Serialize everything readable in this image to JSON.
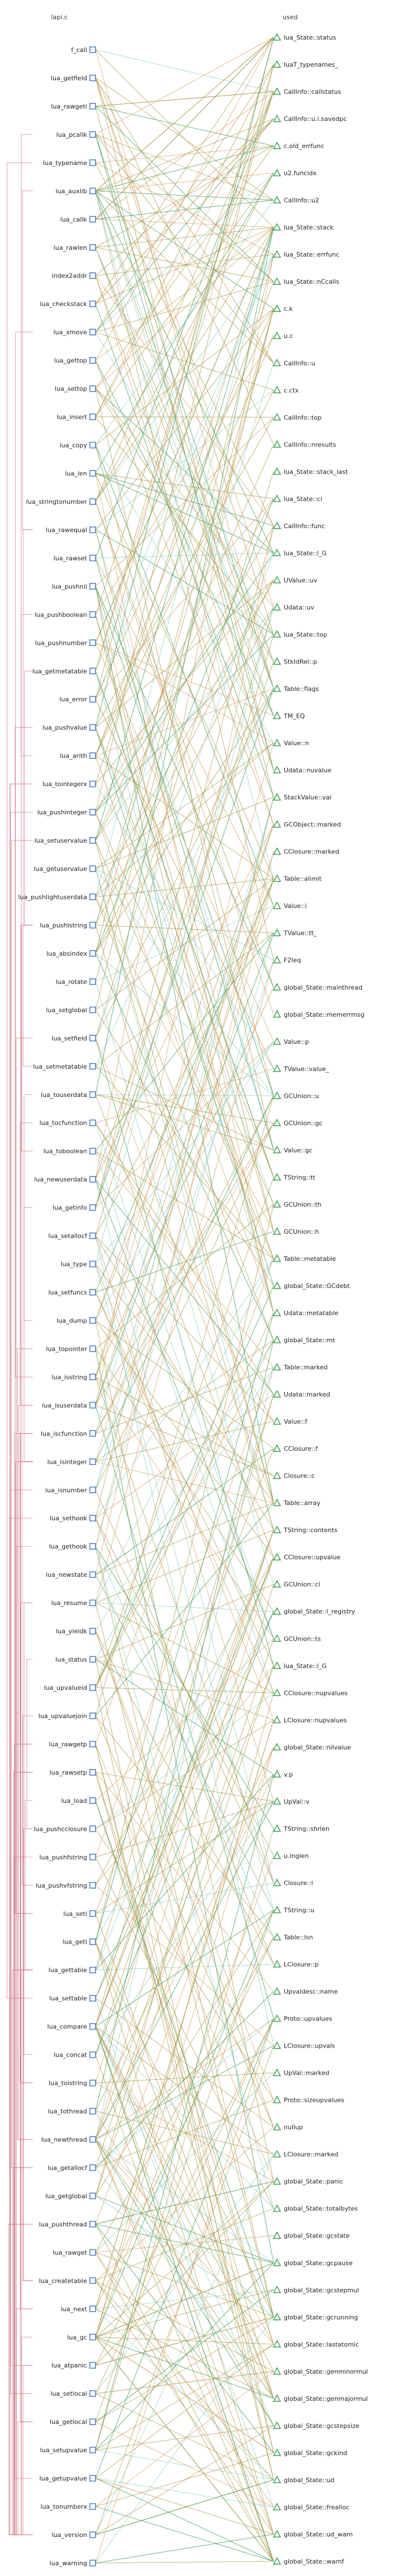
{
  "headers": {
    "left": "lapi.c",
    "right": "used"
  },
  "colors": {
    "edge_lightblue": "#8ecfc7",
    "edge_green": "#3e9a55",
    "edge_tan": "#b09a4e",
    "edge_orange": "#d7a16a",
    "call_arc": "#c45b72",
    "func_marker": "#4a78c9",
    "field_marker": "#3c9f58"
  },
  "functions": [
    "f_call",
    "lua_getfield",
    "lua_rawgeti",
    "lua_pcallk",
    "lua_typename",
    "lua_auxlib",
    "lua_callk",
    "lua_rawlen",
    "index2addr",
    "lua_checkstack",
    "lua_xmove",
    "lua_gettop",
    "lua_settop",
    "lua_insert",
    "lua_copy",
    "lua_len",
    "lua_stringtonumber",
    "lua_rawequal",
    "lua_rawset",
    "lua_pushnil",
    "lua_pushboolean",
    "lua_pushnumber",
    "lua_getmetatable",
    "lua_error",
    "lua_pushvalue",
    "lua_arith",
    "lua_tointegerx",
    "lua_pushinteger",
    "lua_setuservalue",
    "lua_getuservalue",
    "lua_pushlightuserdata",
    "lua_pushlstring",
    "lua_absindex",
    "lua_rotate",
    "lua_setglobal",
    "lua_setfield",
    "lua_setmetatable",
    "lua_touserdata",
    "lua_tocfunction",
    "lua_toboolean",
    "lua_newuserdata",
    "lua_getinfo",
    "lua_setallocf",
    "lua_type",
    "lua_setfuncs",
    "lua_dump",
    "lua_topointer",
    "lua_isstring",
    "lua_isuserdata",
    "lua_iscfunction",
    "lua_isinteger",
    "lua_isnumber",
    "lua_sethook",
    "lua_gethook",
    "lua_newstate",
    "lua_resume",
    "lua_yieldk",
    "lua_status",
    "lua_upvalueid",
    "lua_upvaluejoin",
    "lua_rawgetp",
    "lua_rawsetp",
    "lua_load",
    "lua_pushcclosure",
    "lua_pushfstring",
    "lua_pushvfstring",
    "lua_seti",
    "lua_geti",
    "lua_gettable",
    "lua_settable",
    "lua_compare",
    "lua_concat",
    "lua_tolstring",
    "lua_tothread",
    "lua_newthread",
    "lua_getallocf",
    "lua_getglobal",
    "lua_pushthread",
    "lua_rawget",
    "lua_createtable",
    "lua_next",
    "lua_gc",
    "lua_atpanic",
    "lua_setlocal",
    "lua_getlocal",
    "lua_setupvalue",
    "lua_getupvalue",
    "lua_tonumberx",
    "lua_version",
    "lua_warning"
  ],
  "fields": [
    "lua_State::status",
    "luaT_typenames_",
    "CallInfo::callstatus",
    "CallInfo::u.l.savedpc",
    "c.old_errfunc",
    "u2.funcidx",
    "CallInfo::u2",
    "lua_State::stack",
    "lua_State::errfunc",
    "lua_State::nCcalls",
    "c.k",
    "u.c",
    "CallInfo::u",
    "c.ctx",
    "CallInfo::top",
    "CallInfo::nresults",
    "lua_State::stack_last",
    "lua_State::ci",
    "CallInfo::func",
    "lua_State::l_G",
    "UValue::uv",
    "Udata::uv",
    "lua_State::top",
    "StkIdRel::p",
    "Table::flags",
    "TM_EQ",
    "Value::n",
    "Udata::nuvalue",
    "StackValue::val",
    "GCObject::marked",
    "CClosure::marked",
    "Table::alimit",
    "Value::i",
    "TValue::tt_",
    "F2Ieq",
    "global_State::mainthread",
    "global_State::memerrmsg",
    "Value::p",
    "TValue::value_",
    "GCUnion::u",
    "GCUnion::gc",
    "Value::gc",
    "TString::tt",
    "GCUnion::th",
    "GCUnion::h",
    "Table::metatable",
    "global_State::GCdebt",
    "Udata::metatable",
    "global_State::mt",
    "Table::marked",
    "Udata::marked",
    "Value::f",
    "CClosure::f",
    "Closure::c",
    "Table::array",
    "TString::contents",
    "CClosure::upvalue",
    "GCUnion::cl",
    "global_State::l_registry",
    "GCUnion::ts",
    "lua_State::l_G",
    "CClosure::nupvalues",
    "LClosure::nupvalues",
    "global_State::nilvalue",
    "v.p",
    "UpVal::v",
    "TString::shrlen",
    "u.lnglen",
    "Closure::l",
    "TString::u",
    "Table::lsn",
    "LClosure::p",
    "Upvaldesc::name",
    "Proto::upvalues",
    "LClosure::upvals",
    "UpVal::marked",
    "Proto::sizeupvalues",
    "nullup",
    "LClosure::marked",
    "global_State::panic",
    "global_State::totalbytes",
    "global_State::gcstate",
    "global_State::gcpause",
    "global_State::gcstepmul",
    "global_State::gcrunning",
    "global_State::lastatomic",
    "global_State::genminormul",
    "global_State::genmajormul",
    "global_State::gcstepsize",
    "global_State::gckind",
    "global_State::ud",
    "global_State::frealloc",
    "global_State::ud_warn",
    "global_State::warnf"
  ]
}
